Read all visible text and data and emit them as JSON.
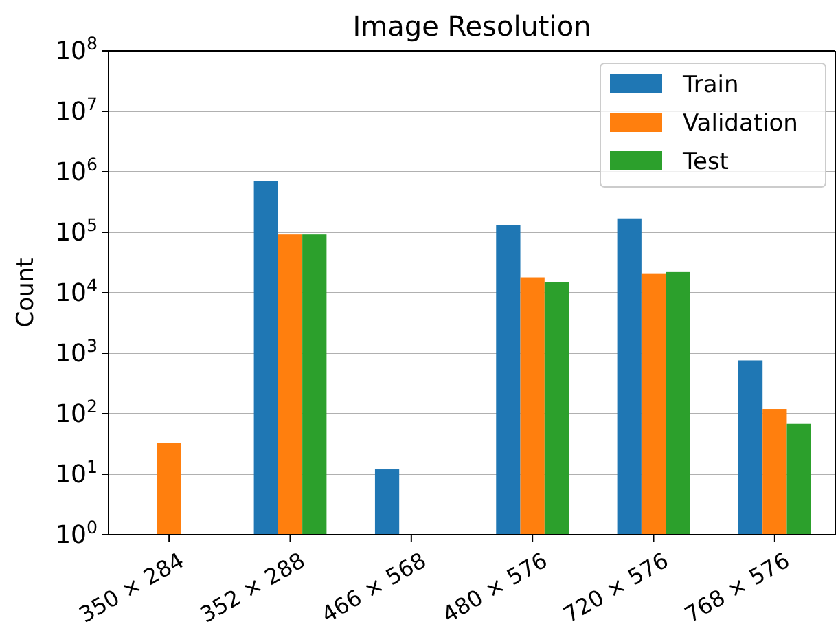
{
  "chart_data": {
    "type": "bar",
    "title": "Image Resolution",
    "ylabel": "Count",
    "categories": [
      "350 × 284",
      "352 × 288",
      "466 × 568",
      "480 × 576",
      "720 × 576",
      "768 × 576"
    ],
    "series": [
      {
        "name": "Train",
        "color": "#1f77b4",
        "values": [
          null,
          710000,
          12,
          130000,
          170000,
          760
        ]
      },
      {
        "name": "Validation",
        "color": "#ff7f0e",
        "values": [
          33,
          92000,
          null,
          18000,
          21000,
          120
        ]
      },
      {
        "name": "Test",
        "color": "#2ca02c",
        "values": [
          null,
          92000,
          null,
          15000,
          22000,
          68
        ]
      }
    ],
    "log": "y",
    "ylim": [
      1,
      100000000
    ],
    "yticks": [
      {
        "value": 1,
        "label": "10$^{0}$"
      },
      {
        "value": 10,
        "label": "10$^{1}$"
      },
      {
        "value": 100,
        "label": "10$^{2}$"
      },
      {
        "value": 1000,
        "label": "10$^{3}$"
      },
      {
        "value": 10000,
        "label": "10$^{4}$"
      },
      {
        "value": 100000,
        "label": "10$^{5}$"
      },
      {
        "value": 1000000,
        "label": "10$^{6}$"
      },
      {
        "value": 10000000,
        "label": "10$^{7}$"
      },
      {
        "value": 100000000,
        "label": "10$^{8}$"
      }
    ],
    "grid": "y",
    "legend": "top right"
  }
}
